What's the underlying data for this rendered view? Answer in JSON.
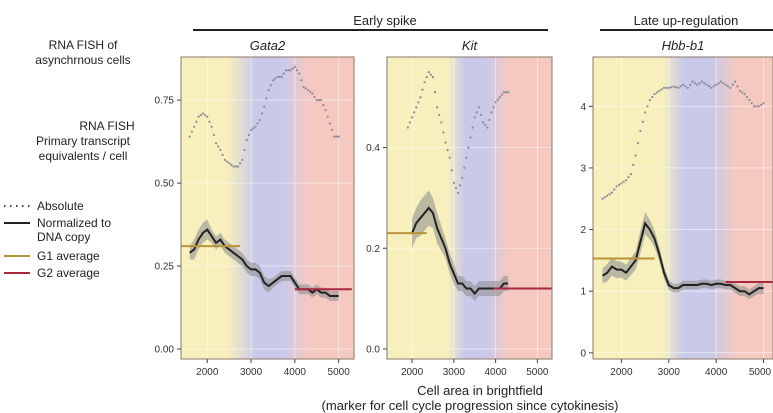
{
  "side_labels": {
    "rna_fish_async": [
      "RNA FISH of",
      "asynchrnous cells"
    ],
    "rna_fish_primary": [
      "RNA FISH",
      "Primary transcript",
      "equivalents / cell"
    ]
  },
  "group_labels": {
    "early": "Early spike",
    "late": "Late up-regulation"
  },
  "legend": {
    "absolute": "Absolute",
    "normalized": [
      "Normalized to",
      "DNA copy"
    ],
    "g1": "G1 average",
    "g2": "G2 average"
  },
  "colors": {
    "absolute": "#8a8a9a",
    "normalized": "#222222",
    "band": "#8a8a8a",
    "g1": "#b8953a",
    "g2": "#a8283e",
    "yellow": "#f7efbc",
    "blue": "#c9c9ea",
    "red": "#f6c9c0"
  },
  "xlabel": [
    "Cell area in brightfield",
    "(marker for cell cycle progression since cytokinesis)"
  ],
  "chart_data": [
    {
      "type": "line",
      "title": "Gata2",
      "xlim": [
        1400,
        5350
      ],
      "ylim": [
        -0.03,
        0.88
      ],
      "xticks": [
        2000,
        3000,
        4000,
        5000
      ],
      "yticks": [
        0.0,
        0.25,
        0.5,
        0.75
      ],
      "ytick_labels": [
        "0.00",
        "0.25",
        "0.50",
        "0.75"
      ],
      "phases": [
        [
          1400,
          2800,
          "yellow"
        ],
        [
          2800,
          4000,
          "blue"
        ],
        [
          4000,
          5350,
          "red"
        ]
      ],
      "absolute": {
        "x": [
          1600,
          1700,
          1800,
          1900,
          2000,
          2100,
          2200,
          2300,
          2400,
          2500,
          2600,
          2700,
          2800,
          2900,
          3000,
          3100,
          3200,
          3300,
          3400,
          3500,
          3600,
          3700,
          3800,
          3900,
          4000,
          4100,
          4200,
          4300,
          4400,
          4500,
          4600,
          4700,
          4800,
          4900,
          5000
        ],
        "y": [
          0.64,
          0.67,
          0.7,
          0.71,
          0.7,
          0.67,
          0.62,
          0.6,
          0.57,
          0.56,
          0.55,
          0.55,
          0.57,
          0.63,
          0.66,
          0.67,
          0.69,
          0.73,
          0.78,
          0.81,
          0.82,
          0.82,
          0.84,
          0.84,
          0.85,
          0.83,
          0.79,
          0.78,
          0.77,
          0.75,
          0.75,
          0.72,
          0.68,
          0.64,
          0.64
        ]
      },
      "normalized": {
        "x": [
          1600,
          1700,
          1800,
          1900,
          2000,
          2100,
          2200,
          2300,
          2400,
          2500,
          2600,
          2700,
          2800,
          2900,
          3000,
          3100,
          3200,
          3300,
          3400,
          3500,
          3600,
          3700,
          3800,
          3900,
          4000,
          4100,
          4200,
          4300,
          4400,
          4500,
          4600,
          4700,
          4800,
          4900,
          5000
        ],
        "y": [
          0.29,
          0.3,
          0.33,
          0.35,
          0.36,
          0.34,
          0.32,
          0.33,
          0.31,
          0.3,
          0.29,
          0.28,
          0.27,
          0.25,
          0.24,
          0.24,
          0.23,
          0.2,
          0.19,
          0.2,
          0.21,
          0.22,
          0.22,
          0.22,
          0.2,
          0.18,
          0.18,
          0.18,
          0.17,
          0.18,
          0.17,
          0.17,
          0.16,
          0.16,
          0.16
        ],
        "band": [
          0.02,
          0.03,
          0.03,
          0.03,
          0.03,
          0.02,
          0.02,
          0.02,
          0.02,
          0.02,
          0.02,
          0.02,
          0.02,
          0.02,
          0.02,
          0.02,
          0.02,
          0.02,
          0.02,
          0.015,
          0.015,
          0.015,
          0.015,
          0.015,
          0.015,
          0.015,
          0.015,
          0.015,
          0.015,
          0.015,
          0.015,
          0.015,
          0.015,
          0.015,
          0.015
        ]
      },
      "g1_average": {
        "x": [
          1400,
          2750
        ],
        "y": 0.31
      },
      "g2_average": {
        "x": [
          4000,
          5300
        ],
        "y": 0.18
      }
    },
    {
      "type": "line",
      "title": "Kit",
      "xlim": [
        1400,
        5350
      ],
      "ylim": [
        -0.02,
        0.58
      ],
      "xticks": [
        2000,
        3000,
        4000,
        5000
      ],
      "yticks": [
        0.0,
        0.2,
        0.4
      ],
      "ytick_labels": [
        "0.0",
        "0.2",
        "0.4"
      ],
      "phases": [
        [
          1400,
          2400,
          "yellow"
        ],
        [
          2400,
          3000,
          "yellow"
        ],
        [
          3000,
          4000,
          "blue"
        ],
        [
          4000,
          5350,
          "red"
        ]
      ],
      "absolute": {
        "x": [
          1900,
          2000,
          2100,
          2200,
          2300,
          2400,
          2500,
          2600,
          2700,
          2800,
          2900,
          3000,
          3100,
          3200,
          3300,
          3400,
          3500,
          3600,
          3700,
          3800,
          3900,
          4000,
          4100,
          4200,
          4300
        ],
        "y": [
          0.44,
          0.46,
          0.48,
          0.5,
          0.53,
          0.55,
          0.54,
          0.48,
          0.45,
          0.41,
          0.38,
          0.33,
          0.31,
          0.34,
          0.38,
          0.42,
          0.46,
          0.48,
          0.45,
          0.44,
          0.47,
          0.49,
          0.5,
          0.51,
          0.51
        ]
      },
      "normalized": {
        "x": [
          2000,
          2100,
          2200,
          2300,
          2400,
          2500,
          2600,
          2700,
          2800,
          2900,
          3000,
          3100,
          3200,
          3300,
          3400,
          3500,
          3600,
          3700,
          3800,
          3900,
          4000,
          4100,
          4200,
          4300
        ],
        "y": [
          0.23,
          0.25,
          0.26,
          0.27,
          0.28,
          0.27,
          0.24,
          0.22,
          0.2,
          0.17,
          0.15,
          0.13,
          0.13,
          0.12,
          0.12,
          0.11,
          0.12,
          0.12,
          0.12,
          0.12,
          0.12,
          0.12,
          0.13,
          0.13
        ],
        "band": [
          0.03,
          0.03,
          0.035,
          0.035,
          0.035,
          0.03,
          0.03,
          0.025,
          0.02,
          0.02,
          0.02,
          0.015,
          0.015,
          0.015,
          0.015,
          0.015,
          0.015,
          0.015,
          0.015,
          0.015,
          0.015,
          0.015,
          0.015,
          0.015
        ]
      },
      "g1_average": {
        "x": [
          1400,
          2350
        ],
        "y": 0.23
      },
      "g2_average": {
        "x": [
          3950,
          5350
        ],
        "y": 0.12
      }
    },
    {
      "type": "line",
      "title": "Hbb-b1",
      "xlim": [
        1400,
        5200
      ],
      "ylim": [
        -0.1,
        4.8
      ],
      "xticks": [
        2000,
        3000,
        4000,
        5000
      ],
      "xtick_labels": [
        "2000",
        "3000",
        "4000",
        "5000"
      ],
      "yticks": [
        0,
        1,
        2,
        3,
        4
      ],
      "ytick_labels": [
        "0",
        "1",
        "2",
        "3",
        "4"
      ],
      "phases": [
        [
          1400,
          2500,
          "yellow"
        ],
        [
          2500,
          3000,
          "yellow"
        ],
        [
          3000,
          4200,
          "blue"
        ],
        [
          4200,
          5200,
          "red"
        ]
      ],
      "absolute": {
        "x": [
          1600,
          1700,
          1800,
          1900,
          2000,
          2100,
          2200,
          2300,
          2400,
          2500,
          2600,
          2700,
          2800,
          2900,
          3000,
          3100,
          3200,
          3300,
          3400,
          3500,
          3600,
          3700,
          3800,
          3900,
          4000,
          4100,
          4200,
          4300,
          4400,
          4500,
          4600,
          4700,
          4800,
          4900,
          5000
        ],
        "y": [
          2.5,
          2.55,
          2.6,
          2.7,
          2.75,
          2.8,
          2.9,
          3.2,
          3.6,
          3.9,
          4.1,
          4.2,
          4.25,
          4.3,
          4.3,
          4.32,
          4.3,
          4.35,
          4.3,
          4.4,
          4.35,
          4.4,
          4.35,
          4.3,
          4.35,
          4.4,
          4.35,
          4.3,
          4.4,
          4.25,
          4.2,
          4.1,
          4.0,
          4.0,
          4.05
        ]
      },
      "normalized": {
        "x": [
          1600,
          1700,
          1800,
          1900,
          2000,
          2100,
          2200,
          2300,
          2400,
          2500,
          2600,
          2700,
          2800,
          2900,
          3000,
          3100,
          3200,
          3300,
          3400,
          3500,
          3600,
          3700,
          3800,
          3900,
          4000,
          4100,
          4200,
          4300,
          4400,
          4500,
          4600,
          4700,
          4800,
          4900,
          5000
        ],
        "y": [
          1.25,
          1.3,
          1.4,
          1.35,
          1.35,
          1.3,
          1.4,
          1.5,
          1.8,
          2.1,
          2.0,
          1.85,
          1.6,
          1.3,
          1.1,
          1.05,
          1.05,
          1.1,
          1.1,
          1.1,
          1.1,
          1.12,
          1.12,
          1.1,
          1.12,
          1.12,
          1.1,
          1.1,
          1.05,
          1.0,
          1.0,
          0.95,
          1.0,
          1.05,
          1.05
        ],
        "band": [
          0.12,
          0.14,
          0.15,
          0.14,
          0.13,
          0.13,
          0.14,
          0.15,
          0.18,
          0.18,
          0.16,
          0.14,
          0.12,
          0.1,
          0.08,
          0.07,
          0.07,
          0.07,
          0.07,
          0.07,
          0.07,
          0.07,
          0.07,
          0.07,
          0.07,
          0.07,
          0.07,
          0.07,
          0.08,
          0.08,
          0.08,
          0.08,
          0.08,
          0.09,
          0.1
        ]
      },
      "g1_average": {
        "x": [
          1400,
          2700
        ],
        "y": 1.53
      },
      "g2_average": {
        "x": [
          4200,
          5200
        ],
        "y": 1.15
      }
    }
  ]
}
